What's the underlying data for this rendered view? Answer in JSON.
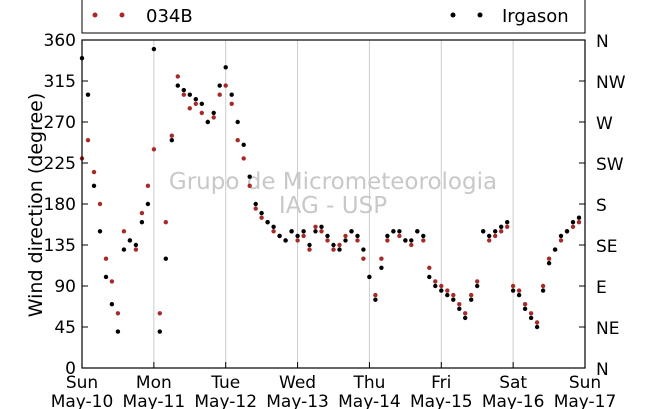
{
  "chart_data": {
    "type": "scatter",
    "ylabel": "Wind direction (degree)",
    "ylim": [
      0,
      360
    ],
    "yticks": [
      0,
      45,
      90,
      135,
      180,
      225,
      270,
      315,
      360
    ],
    "right_ticks": [
      {
        "value": 0,
        "label": "N"
      },
      {
        "value": 45,
        "label": "NE"
      },
      {
        "value": 90,
        "label": "E"
      },
      {
        "value": 135,
        "label": "SE"
      },
      {
        "value": 180,
        "label": "S"
      },
      {
        "value": 225,
        "label": "SW"
      },
      {
        "value": 270,
        "label": "W"
      },
      {
        "value": 315,
        "label": "NW"
      },
      {
        "value": 360,
        "label": "N"
      }
    ],
    "xlim": [
      "2015-05-10",
      "2015-05-17"
    ],
    "x_ticks": [
      {
        "date": "2015-05-10",
        "day": "Sun",
        "label": "May-10"
      },
      {
        "date": "2015-05-11",
        "day": "Mon",
        "label": "May-11"
      },
      {
        "date": "2015-05-12",
        "day": "Tue",
        "label": "May-12"
      },
      {
        "date": "2015-05-13",
        "day": "Wed",
        "label": "May-13"
      },
      {
        "date": "2015-05-14",
        "day": "Thu",
        "label": "May-14"
      },
      {
        "date": "2015-05-15",
        "day": "Fri",
        "label": "May-15"
      },
      {
        "date": "2015-05-16",
        "day": "Sat",
        "label": "May-16"
      },
      {
        "date": "2015-05-17",
        "day": "Sun",
        "label": "May-17"
      }
    ],
    "grid": "vertical",
    "legend_position": "top",
    "watermark": [
      "Grupo de Micrometeorologia",
      "IAG - USP"
    ],
    "series": [
      {
        "name": "034B",
        "color": "#a52a2a",
        "x": [
          "2015-05-10 00:00",
          "2015-05-10 02:00",
          "2015-05-10 04:00",
          "2015-05-10 06:00",
          "2015-05-10 08:00",
          "2015-05-10 10:00",
          "2015-05-10 12:00",
          "2015-05-10 14:00",
          "2015-05-10 16:00",
          "2015-05-10 18:00",
          "2015-05-10 20:00",
          "2015-05-10 22:00",
          "2015-05-11 00:00",
          "2015-05-11 02:00",
          "2015-05-11 04:00",
          "2015-05-11 06:00",
          "2015-05-11 08:00",
          "2015-05-11 10:00",
          "2015-05-11 12:00",
          "2015-05-11 14:00",
          "2015-05-11 16:00",
          "2015-05-11 18:00",
          "2015-05-11 20:00",
          "2015-05-11 22:00",
          "2015-05-12 00:00",
          "2015-05-12 02:00",
          "2015-05-12 04:00",
          "2015-05-12 06:00",
          "2015-05-12 08:00",
          "2015-05-12 10:00",
          "2015-05-12 12:00",
          "2015-05-12 14:00",
          "2015-05-12 16:00",
          "2015-05-12 18:00",
          "2015-05-12 20:00",
          "2015-05-12 22:00",
          "2015-05-13 00:00",
          "2015-05-13 02:00",
          "2015-05-13 04:00",
          "2015-05-13 06:00",
          "2015-05-13 08:00",
          "2015-05-13 10:00",
          "2015-05-13 12:00",
          "2015-05-13 14:00",
          "2015-05-13 16:00",
          "2015-05-13 18:00",
          "2015-05-13 20:00",
          "2015-05-13 22:00",
          "2015-05-14 00:00",
          "2015-05-14 02:00",
          "2015-05-14 04:00",
          "2015-05-14 06:00",
          "2015-05-14 08:00",
          "2015-05-14 10:00",
          "2015-05-14 12:00",
          "2015-05-14 14:00",
          "2015-05-14 16:00",
          "2015-05-14 18:00",
          "2015-05-14 20:00",
          "2015-05-14 22:00",
          "2015-05-15 00:00",
          "2015-05-15 02:00",
          "2015-05-15 04:00",
          "2015-05-15 06:00",
          "2015-05-15 08:00",
          "2015-05-15 10:00",
          "2015-05-15 12:00",
          "2015-05-15 14:00",
          "2015-05-15 16:00",
          "2015-05-15 18:00",
          "2015-05-15 20:00",
          "2015-05-15 22:00",
          "2015-05-16 00:00",
          "2015-05-16 02:00",
          "2015-05-16 04:00",
          "2015-05-16 06:00",
          "2015-05-16 08:00",
          "2015-05-16 10:00",
          "2015-05-16 12:00",
          "2015-05-16 14:00",
          "2015-05-16 16:00",
          "2015-05-16 18:00",
          "2015-05-16 20:00",
          "2015-05-16 22:00"
        ],
        "values": [
          230,
          250,
          215,
          180,
          120,
          95,
          60,
          150,
          140,
          130,
          170,
          200,
          240,
          60,
          160,
          255,
          320,
          300,
          285,
          290,
          280,
          270,
          275,
          300,
          310,
          290,
          250,
          230,
          200,
          175,
          165,
          160,
          150,
          145,
          140,
          150,
          140,
          145,
          130,
          155,
          150,
          140,
          130,
          135,
          145,
          150,
          140,
          120,
          100,
          80,
          120,
          140,
          150,
          145,
          140,
          135,
          150,
          140,
          110,
          95,
          90,
          85,
          80,
          70,
          60,
          80,
          95,
          150,
          140,
          145,
          150,
          155,
          90,
          85,
          70,
          60,
          50,
          90,
          120,
          130,
          140,
          150,
          155,
          160
        ]
      },
      {
        "name": "Irgason",
        "color": "#000000",
        "x": [
          "2015-05-10 00:00",
          "2015-05-10 02:00",
          "2015-05-10 04:00",
          "2015-05-10 06:00",
          "2015-05-10 08:00",
          "2015-05-10 10:00",
          "2015-05-10 12:00",
          "2015-05-10 14:00",
          "2015-05-10 16:00",
          "2015-05-10 18:00",
          "2015-05-10 20:00",
          "2015-05-10 22:00",
          "2015-05-11 00:00",
          "2015-05-11 02:00",
          "2015-05-11 04:00",
          "2015-05-11 06:00",
          "2015-05-11 08:00",
          "2015-05-11 10:00",
          "2015-05-11 12:00",
          "2015-05-11 14:00",
          "2015-05-11 16:00",
          "2015-05-11 18:00",
          "2015-05-11 20:00",
          "2015-05-11 22:00",
          "2015-05-12 00:00",
          "2015-05-12 02:00",
          "2015-05-12 04:00",
          "2015-05-12 06:00",
          "2015-05-12 08:00",
          "2015-05-12 10:00",
          "2015-05-12 12:00",
          "2015-05-12 14:00",
          "2015-05-12 16:00",
          "2015-05-12 18:00",
          "2015-05-12 20:00",
          "2015-05-12 22:00",
          "2015-05-13 00:00",
          "2015-05-13 02:00",
          "2015-05-13 04:00",
          "2015-05-13 06:00",
          "2015-05-13 08:00",
          "2015-05-13 10:00",
          "2015-05-13 12:00",
          "2015-05-13 14:00",
          "2015-05-13 16:00",
          "2015-05-13 18:00",
          "2015-05-13 20:00",
          "2015-05-13 22:00",
          "2015-05-14 00:00",
          "2015-05-14 02:00",
          "2015-05-14 04:00",
          "2015-05-14 06:00",
          "2015-05-14 08:00",
          "2015-05-14 10:00",
          "2015-05-14 12:00",
          "2015-05-14 14:00",
          "2015-05-14 16:00",
          "2015-05-14 18:00",
          "2015-05-14 20:00",
          "2015-05-14 22:00",
          "2015-05-15 00:00",
          "2015-05-15 02:00",
          "2015-05-15 04:00",
          "2015-05-15 06:00",
          "2015-05-15 08:00",
          "2015-05-15 10:00",
          "2015-05-15 12:00",
          "2015-05-15 14:00",
          "2015-05-15 16:00",
          "2015-05-15 18:00",
          "2015-05-15 20:00",
          "2015-05-15 22:00",
          "2015-05-16 00:00",
          "2015-05-16 02:00",
          "2015-05-16 04:00",
          "2015-05-16 06:00",
          "2015-05-16 08:00",
          "2015-05-16 10:00",
          "2015-05-16 12:00",
          "2015-05-16 14:00",
          "2015-05-16 16:00",
          "2015-05-16 18:00",
          "2015-05-16 20:00",
          "2015-05-16 22:00"
        ],
        "values": [
          340,
          300,
          200,
          150,
          100,
          70,
          40,
          130,
          140,
          135,
          160,
          180,
          350,
          40,
          120,
          250,
          310,
          305,
          300,
          295,
          290,
          270,
          280,
          310,
          330,
          300,
          270,
          245,
          210,
          180,
          170,
          160,
          155,
          145,
          140,
          150,
          145,
          150,
          135,
          150,
          155,
          145,
          135,
          130,
          140,
          150,
          145,
          130,
          100,
          75,
          110,
          145,
          150,
          150,
          140,
          140,
          150,
          145,
          100,
          90,
          85,
          80,
          75,
          65,
          55,
          75,
          90,
          150,
          145,
          150,
          155,
          160,
          85,
          80,
          65,
          55,
          45,
          85,
          115,
          130,
          145,
          150,
          160,
          165
        ]
      }
    ]
  }
}
